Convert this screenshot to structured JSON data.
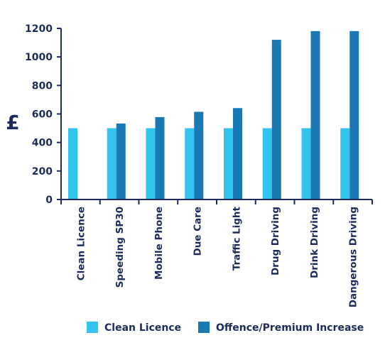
{
  "chart_data": {
    "type": "bar",
    "categories": [
      "Clean Licence",
      "Speeding SP30",
      "Mobile Phone",
      "Due Care",
      "Traffic Light",
      "Drug Driving",
      "Drink Driving",
      "Dangerous Driving"
    ],
    "series": [
      {
        "name": "Clean Licence",
        "values": [
          500,
          500,
          500,
          500,
          500,
          500,
          500,
          500
        ],
        "color": "#33c3ef"
      },
      {
        "name": "Offence/Premium Increase",
        "values": [
          null,
          533,
          578,
          615,
          641,
          1120,
          1181,
          1181
        ],
        "color": "#1a79b4"
      }
    ],
    "ylabel": "£",
    "ylim": [
      0,
      1200
    ],
    "yticks": [
      0,
      200,
      400,
      600,
      800,
      1000,
      1200
    ],
    "grid": false,
    "legend": "bottom",
    "axis_color": "#1d2b5a"
  }
}
